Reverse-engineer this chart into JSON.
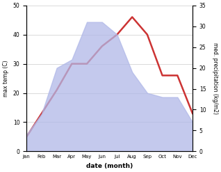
{
  "months": [
    "Jan",
    "Feb",
    "Mar",
    "Apr",
    "May",
    "Jun",
    "Jul",
    "Aug",
    "Sep",
    "Oct",
    "Nov",
    "Dec"
  ],
  "max_temp": [
    5,
    13,
    21,
    30,
    30,
    36,
    40,
    46,
    40,
    26,
    26,
    13
  ],
  "precipitation": [
    4,
    9,
    20,
    22,
    31,
    31,
    28,
    19,
    14,
    13,
    13,
    7
  ],
  "temp_ylim": [
    0,
    50
  ],
  "precip_ylim": [
    0,
    35
  ],
  "temp_yticks": [
    0,
    10,
    20,
    30,
    40,
    50
  ],
  "precip_yticks": [
    0,
    5,
    10,
    15,
    20,
    25,
    30,
    35
  ],
  "xlabel": "date (month)",
  "ylabel_left": "max temp (C)",
  "ylabel_right": "med. precipitation (kg/m2)",
  "line_color": "#cc3333",
  "fill_color": "#b0b8e8",
  "fill_alpha": 0.75,
  "line_width": 1.8,
  "background_color": "#ffffff"
}
